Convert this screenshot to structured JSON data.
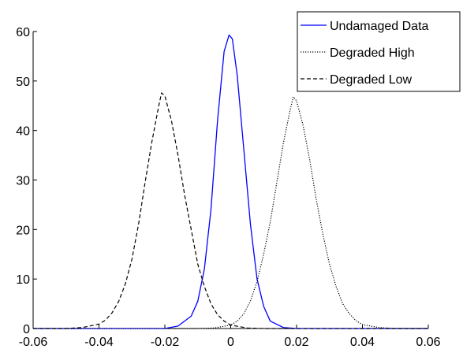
{
  "chart_data": {
    "type": "line",
    "title": "",
    "xlabel": "",
    "ylabel": "",
    "xlim": [
      -0.06,
      0.06
    ],
    "ylim": [
      0,
      60
    ],
    "xticks": [
      -0.06,
      -0.04,
      -0.02,
      0,
      0.02,
      0.04,
      0.06
    ],
    "xtick_labels": [
      "-0.06",
      "-0.04",
      "-0.02",
      "0",
      "0.02",
      "0.04",
      "0.06"
    ],
    "yticks": [
      0,
      10,
      20,
      30,
      40,
      50,
      60
    ],
    "ytick_labels": [
      "0",
      "10",
      "20",
      "30",
      "40",
      "50",
      "60"
    ],
    "grid": false,
    "legend_position": "top-right",
    "series": [
      {
        "name": "Undamaged Data",
        "color": "#0000ff",
        "linestyle": "solid",
        "x": [
          -0.06,
          -0.02,
          -0.016,
          -0.012,
          -0.01,
          -0.008,
          -0.006,
          -0.004,
          -0.002,
          -0.0005,
          0.0005,
          0.002,
          0.004,
          0.006,
          0.008,
          0.01,
          0.012,
          0.016,
          0.02,
          0.06
        ],
        "y": [
          0,
          0,
          0.5,
          2.5,
          5.5,
          12,
          24,
          42,
          56,
          59.3,
          58.5,
          51,
          36,
          21,
          10,
          4.5,
          1.5,
          0.2,
          0,
          0
        ]
      },
      {
        "name": "Degraded High",
        "color": "#000000",
        "linestyle": "dotted",
        "x": [
          -0.06,
          -0.01,
          -0.005,
          0,
          0.002,
          0.004,
          0.006,
          0.008,
          0.01,
          0.012,
          0.014,
          0.016,
          0.018,
          0.019,
          0.02,
          0.022,
          0.024,
          0.026,
          0.028,
          0.03,
          0.032,
          0.034,
          0.036,
          0.038,
          0.04,
          0.045,
          0.05,
          0.06
        ],
        "y": [
          0,
          0,
          0.1,
          0.7,
          1.5,
          3,
          5.6,
          9.5,
          15,
          21.5,
          29.5,
          37.5,
          44,
          46.8,
          46,
          41,
          34,
          26,
          19,
          13,
          8.5,
          5,
          3,
          1.6,
          0.8,
          0.2,
          0,
          0
        ]
      },
      {
        "name": "Degraded Low",
        "color": "#000000",
        "linestyle": "dashed",
        "x": [
          -0.06,
          -0.05,
          -0.045,
          -0.04,
          -0.038,
          -0.036,
          -0.034,
          -0.032,
          -0.03,
          -0.028,
          -0.026,
          -0.024,
          -0.022,
          -0.021,
          -0.02,
          -0.018,
          -0.016,
          -0.014,
          -0.012,
          -0.01,
          -0.008,
          -0.006,
          -0.004,
          -0.002,
          0,
          0.005,
          0.01,
          0.06
        ],
        "y": [
          0,
          0,
          0.2,
          0.9,
          1.7,
          3.2,
          5.5,
          9,
          14,
          21,
          29.5,
          37.5,
          44.5,
          47.6,
          47,
          42,
          35,
          27,
          20,
          13,
          8.5,
          5,
          2.8,
          1.5,
          0.7,
          0.1,
          0,
          0
        ]
      }
    ]
  }
}
